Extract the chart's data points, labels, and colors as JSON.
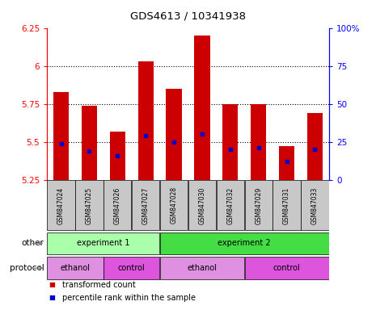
{
  "title": "GDS4613 / 10341938",
  "samples": [
    "GSM847024",
    "GSM847025",
    "GSM847026",
    "GSM847027",
    "GSM847028",
    "GSM847030",
    "GSM847032",
    "GSM847029",
    "GSM847031",
    "GSM847033"
  ],
  "bar_bottom": 5.25,
  "bar_tops": [
    5.83,
    5.74,
    5.57,
    6.03,
    5.85,
    6.2,
    5.75,
    5.75,
    5.47,
    5.69
  ],
  "blue_marks": [
    5.49,
    5.44,
    5.41,
    5.54,
    5.5,
    5.55,
    5.45,
    5.46,
    5.37,
    5.45
  ],
  "ylim_left": [
    5.25,
    6.25
  ],
  "ylim_right": [
    0,
    100
  ],
  "yticks_left": [
    5.25,
    5.5,
    5.75,
    6.0,
    6.25
  ],
  "ytick_labels_left": [
    "5.25",
    "5.5",
    "5.75",
    "6",
    "6.25"
  ],
  "yticks_right": [
    0,
    25,
    50,
    75,
    100
  ],
  "ytick_labels_right": [
    "0",
    "25",
    "50",
    "75",
    "100%"
  ],
  "bar_color": "#cc0000",
  "blue_color": "#0000cc",
  "tick_bg": "#c8c8c8",
  "other_row": [
    {
      "label": "experiment 1",
      "start": 0,
      "end": 4,
      "color": "#aaffaa"
    },
    {
      "label": "experiment 2",
      "start": 4,
      "end": 10,
      "color": "#44dd44"
    }
  ],
  "protocol_row": [
    {
      "label": "ethanol",
      "start": 0,
      "end": 2,
      "color": "#e090e0"
    },
    {
      "label": "control",
      "start": 2,
      "end": 4,
      "color": "#dd55dd"
    },
    {
      "label": "ethanol",
      "start": 4,
      "end": 7,
      "color": "#e090e0"
    },
    {
      "label": "control",
      "start": 7,
      "end": 10,
      "color": "#dd55dd"
    }
  ],
  "legend_items": [
    {
      "label": "transformed count",
      "color": "#cc0000"
    },
    {
      "label": "percentile rank within the sample",
      "color": "#0000cc"
    }
  ],
  "row_labels": [
    "other",
    "protocol"
  ],
  "bar_width": 0.55
}
